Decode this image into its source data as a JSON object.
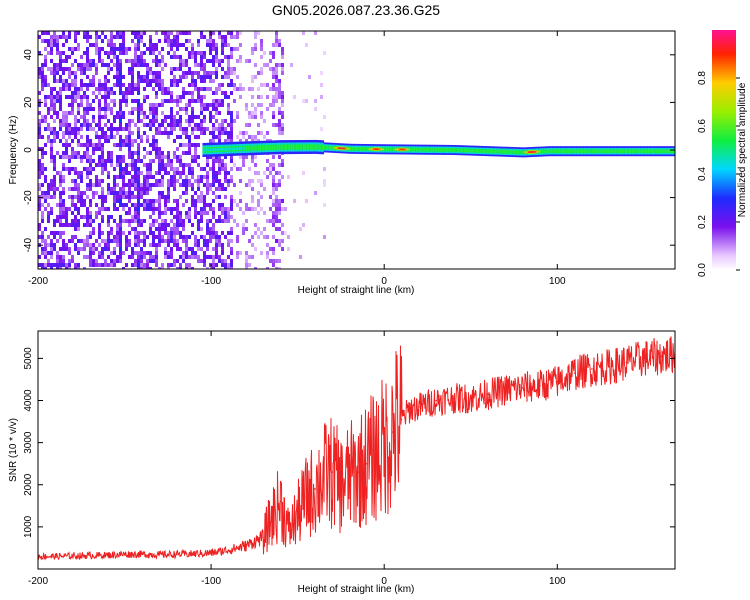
{
  "figure_title": "GN05.2026.087.23.36.G25",
  "chart_data": [
    {
      "type": "heatmap",
      "title": "GN05.2026.087.23.36.G25",
      "xlabel": "Height of straight line (km)",
      "ylabel": "Frequency (Hz)",
      "xlim": [
        -200,
        168
      ],
      "ylim": [
        -50,
        50
      ],
      "xticks": [
        -200,
        -100,
        0,
        100
      ],
      "yticks": [
        -40,
        -20,
        0,
        20,
        40
      ],
      "colorbar": {
        "label": "Normalized spectral amplitude",
        "range": [
          0,
          1
        ],
        "ticks": [
          0.0,
          0.2,
          0.4,
          0.6,
          0.8
        ],
        "colormap": "rainbow (white-violet-blue-cyan-green-yellow-red-magenta)"
      },
      "features": {
        "noise_region_x": [
          -200,
          -58
        ],
        "dark_stripes_x": [
          -153,
          -143
        ],
        "signal_band": {
          "x_start": -105,
          "x_end": 168,
          "center_freq_hz": 0,
          "points": [
            [
              -105,
              0
            ],
            [
              -80,
              0.7
            ],
            [
              -60,
              1.2
            ],
            [
              -40,
              1.3
            ],
            [
              -20,
              0.5
            ],
            [
              0,
              0.3
            ],
            [
              40,
              0
            ],
            [
              80,
              -1
            ],
            [
              95,
              -0.5
            ],
            [
              168,
              -0.5
            ]
          ]
        },
        "peak_amplitude_x": [
          [
            -25,
            0.95
          ],
          [
            -5,
            0.9
          ],
          [
            10,
            0.9
          ],
          [
            85,
            0.95
          ]
        ]
      }
    },
    {
      "type": "line",
      "xlabel": "Height of straight line (km)",
      "ylabel": "SNR (10 * v/v)",
      "xlim": [
        -200,
        168
      ],
      "ylim": [
        0,
        5650
      ],
      "xticks": [
        -200,
        -100,
        0,
        100
      ],
      "yticks": [
        1000,
        2000,
        3000,
        4000,
        5000
      ],
      "color": "#ee2222",
      "series": [
        {
          "x": [
            -200,
            -190,
            -180,
            -170,
            -160,
            -150,
            -140,
            -130,
            -120,
            -110,
            -100,
            -90,
            -80,
            -70,
            -65,
            -60,
            -55,
            -50,
            -45,
            -40,
            -35,
            -30,
            -25,
            -20,
            -15,
            -10,
            -5,
            0,
            5,
            10,
            15,
            20,
            30,
            40,
            50,
            60,
            70,
            80,
            90,
            100,
            110,
            120,
            130,
            140,
            150,
            160,
            168
          ],
          "y": [
            300,
            300,
            310,
            320,
            330,
            350,
            350,
            340,
            350,
            360,
            380,
            450,
            550,
            750,
            1200,
            1600,
            900,
            1300,
            1700,
            1900,
            2200,
            2300,
            2000,
            2200,
            2300,
            2500,
            2700,
            2900,
            3250,
            3550,
            3800,
            3850,
            4000,
            4050,
            4050,
            4150,
            4250,
            4300,
            4350,
            4450,
            4650,
            4750,
            4800,
            4900,
            5000,
            5050,
            5100
          ]
        }
      ]
    }
  ]
}
